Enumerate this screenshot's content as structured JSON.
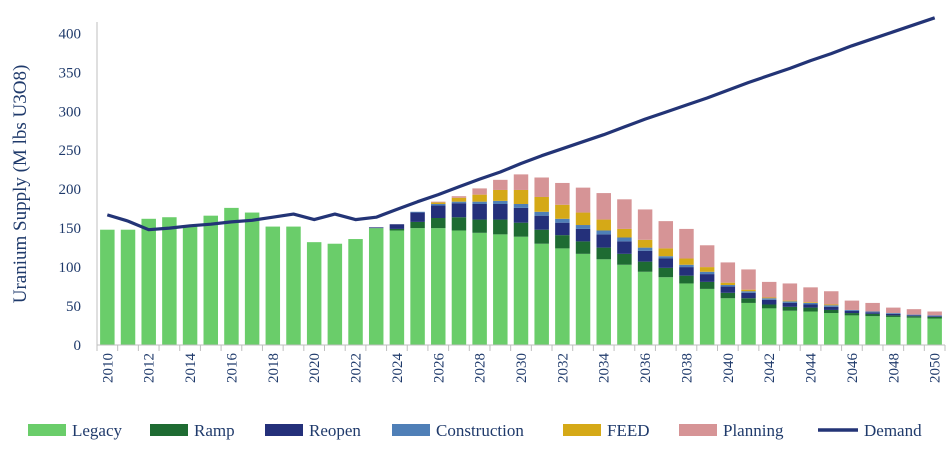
{
  "chart_data": {
    "type": "bar",
    "stacked": true,
    "ylabel": "Uranium Supply (M lbs U3O8)",
    "xlabel": "",
    "ylim": [
      0,
      420
    ],
    "yticks": [
      0,
      50,
      100,
      150,
      200,
      250,
      300,
      350,
      400
    ],
    "grid": false,
    "legend_position": "bottom",
    "x": [
      2010,
      2011,
      2012,
      2013,
      2014,
      2015,
      2016,
      2017,
      2018,
      2019,
      2020,
      2021,
      2022,
      2023,
      2024,
      2025,
      2026,
      2027,
      2028,
      2029,
      2030,
      2031,
      2032,
      2033,
      2034,
      2035,
      2036,
      2037,
      2038,
      2039,
      2040,
      2041,
      2042,
      2043,
      2044,
      2045,
      2046,
      2047,
      2048,
      2049,
      2050
    ],
    "x_tick_labels": [
      "2010",
      "2012",
      "2014",
      "2016",
      "2018",
      "2020",
      "2022",
      "2024",
      "2026",
      "2028",
      "2030",
      "2032",
      "2034",
      "2036",
      "2038",
      "2040",
      "2042",
      "2044",
      "2046",
      "2048",
      "2050"
    ],
    "series": [
      {
        "name": "Legacy",
        "color": "#6acd6a",
        "values": [
          148,
          148,
          162,
          164,
          152,
          166,
          176,
          170,
          152,
          152,
          132,
          130,
          136,
          150,
          147,
          150,
          150,
          147,
          144,
          142,
          139,
          130,
          124,
          117,
          110,
          103,
          94,
          87,
          79,
          72,
          60,
          54,
          47,
          44,
          43,
          41,
          38,
          37,
          36,
          35,
          34
        ]
      },
      {
        "name": "Ramp",
        "color": "#1e6b32",
        "values": [
          0,
          0,
          0,
          0,
          0,
          0,
          0,
          0,
          0,
          0,
          0,
          0,
          0,
          0,
          2,
          8,
          13,
          17,
          17,
          19,
          18,
          18,
          17,
          16,
          15,
          14,
          13,
          12,
          10,
          9,
          7,
          6,
          5,
          5,
          5,
          4,
          3,
          3,
          2,
          2,
          2
        ]
      },
      {
        "name": "Reopen",
        "color": "#24307a",
        "values": [
          0,
          0,
          0,
          0,
          0,
          0,
          0,
          0,
          0,
          0,
          0,
          0,
          0,
          1,
          6,
          12,
          16,
          18,
          20,
          20,
          19,
          18,
          16,
          16,
          17,
          16,
          14,
          12,
          11,
          10,
          8,
          7,
          6,
          5,
          4,
          4,
          3,
          2,
          2,
          1,
          1
        ]
      },
      {
        "name": "Construction",
        "color": "#4f7fb7",
        "values": [
          0,
          0,
          0,
          0,
          0,
          0,
          0,
          0,
          0,
          0,
          0,
          0,
          0,
          0,
          0,
          1,
          2,
          2,
          3,
          4,
          5,
          5,
          5,
          5,
          5,
          5,
          4,
          3,
          3,
          3,
          2,
          2,
          2,
          2,
          2,
          2,
          1,
          1,
          1,
          1,
          1
        ]
      },
      {
        "name": "FEED",
        "color": "#d5a917",
        "values": [
          0,
          0,
          0,
          0,
          0,
          0,
          0,
          0,
          0,
          0,
          0,
          0,
          0,
          0,
          0,
          0,
          2,
          5,
          9,
          14,
          18,
          19,
          18,
          16,
          14,
          11,
          10,
          10,
          8,
          6,
          3,
          2,
          1,
          1,
          1,
          1,
          0,
          0,
          0,
          0,
          0
        ]
      },
      {
        "name": "Planning",
        "color": "#d69496",
        "values": [
          0,
          0,
          0,
          0,
          0,
          0,
          0,
          0,
          0,
          0,
          0,
          0,
          0,
          0,
          0,
          0,
          1,
          2,
          8,
          13,
          20,
          25,
          28,
          32,
          34,
          38,
          39,
          35,
          38,
          28,
          26,
          26,
          20,
          22,
          19,
          17,
          12,
          11,
          7,
          7,
          5
        ]
      },
      {
        "name": "Demand",
        "type": "line",
        "color": "#233476",
        "values": [
          167,
          159,
          148,
          150,
          153,
          155,
          158,
          160,
          164,
          168,
          161,
          168,
          161,
          164,
          174,
          184,
          193,
          203,
          213,
          222,
          233,
          243,
          252,
          261,
          270,
          280,
          290,
          299,
          308,
          317,
          327,
          337,
          346,
          355,
          365,
          374,
          384,
          393,
          402,
          411,
          420
        ]
      }
    ]
  }
}
